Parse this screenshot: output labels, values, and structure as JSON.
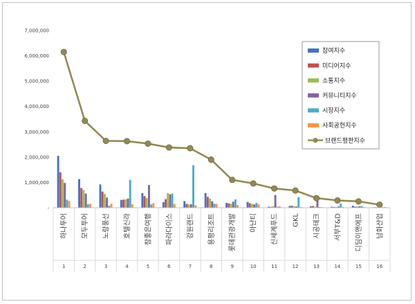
{
  "chart_data": {
    "type": "bar",
    "title": "",
    "xlabel": "",
    "ylabel": "",
    "ylim": [
      0,
      7000000
    ],
    "yticks": [
      "-",
      "1,000,000",
      "2,000,000",
      "3,000,000",
      "4,000,000",
      "5,000,000",
      "6,000,000",
      "7,000,000"
    ],
    "categories": [
      "하나투어",
      "모두투어",
      "노랑풍선",
      "호텔신라",
      "참좋은여행",
      "파라다이스",
      "강원랜드",
      "용평리조트",
      "롯데관광개발",
      "아난티",
      "신세계푸드",
      "GKL",
      "시공테크",
      "서부T&D",
      "디딤이앤에프",
      "남화산업"
    ],
    "ranks": [
      "1",
      "2",
      "3",
      "4",
      "5",
      "6",
      "7",
      "8",
      "9",
      "10",
      "11",
      "12",
      "13",
      "14",
      "15",
      "16"
    ],
    "legend_position": "top-right",
    "series": [
      {
        "name": "참여지수",
        "type": "bar",
        "color": "#4472c4",
        "values": [
          2050000,
          1130000,
          920000,
          310000,
          580000,
          220000,
          260000,
          580000,
          190000,
          230000,
          40000,
          70000,
          60000,
          40000,
          80000,
          20000
        ]
      },
      {
        "name": "미디어지수",
        "type": "bar",
        "color": "#c0504d",
        "values": [
          1400000,
          780000,
          640000,
          320000,
          460000,
          340000,
          150000,
          430000,
          170000,
          180000,
          30000,
          80000,
          70000,
          30000,
          40000,
          20000
        ]
      },
      {
        "name": "소통지수",
        "type": "bar",
        "color": "#9bbb59",
        "values": [
          1120000,
          700000,
          550000,
          330000,
          380000,
          580000,
          130000,
          360000,
          160000,
          150000,
          60000,
          60000,
          40000,
          30000,
          50000,
          10000
        ]
      },
      {
        "name": "커뮤니티지수",
        "type": "bar",
        "color": "#8064a2",
        "values": [
          980000,
          560000,
          400000,
          360000,
          900000,
          530000,
          140000,
          260000,
          240000,
          130000,
          500000,
          50000,
          400000,
          50000,
          60000,
          10000
        ]
      },
      {
        "name": "시장지수",
        "type": "bar",
        "color": "#4bacc6",
        "values": [
          320000,
          140000,
          80000,
          1100000,
          130000,
          560000,
          1680000,
          160000,
          330000,
          190000,
          40000,
          420000,
          30000,
          160000,
          70000,
          20000
        ]
      },
      {
        "name": "사회공헌지수",
        "type": "bar",
        "color": "#f79646",
        "values": [
          260000,
          150000,
          160000,
          140000,
          180000,
          150000,
          100000,
          150000,
          110000,
          130000,
          60000,
          30000,
          20000,
          30000,
          30000,
          30000
        ]
      },
      {
        "name": "브랜드평판지수",
        "type": "line",
        "color": "#938953",
        "values": [
          6150000,
          3430000,
          2640000,
          2630000,
          2530000,
          2380000,
          2350000,
          1900000,
          1100000,
          960000,
          760000,
          680000,
          380000,
          290000,
          250000,
          120000
        ]
      }
    ]
  }
}
